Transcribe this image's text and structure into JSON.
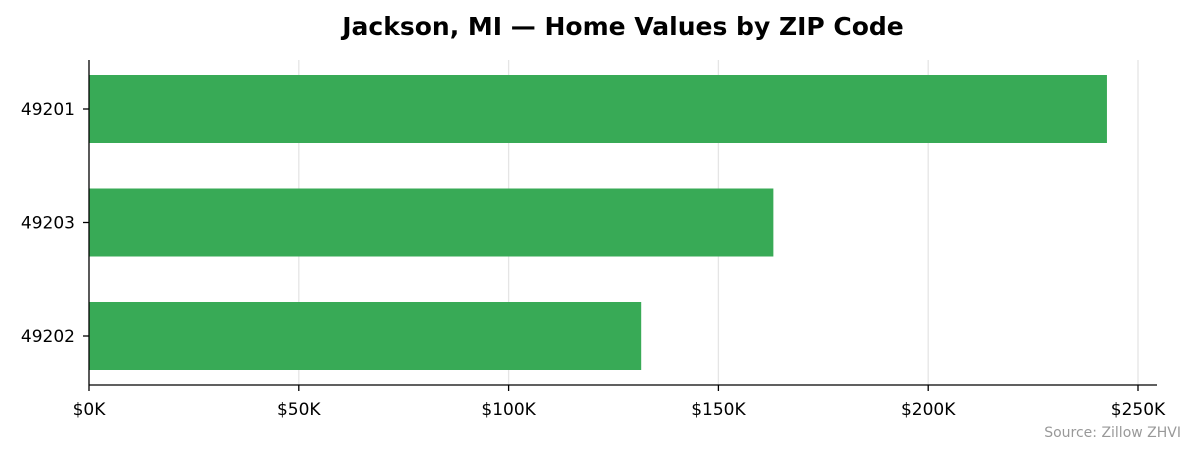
{
  "chart_data": {
    "type": "bar",
    "orientation": "horizontal",
    "title": "Jackson, MI — Home Values by ZIP Code",
    "categories": [
      "49201",
      "49203",
      "49202"
    ],
    "values": [
      242600,
      163100,
      131600
    ],
    "xlabel": "",
    "ylabel": "",
    "xlim": [
      0,
      255000
    ],
    "x_ticks": [
      0,
      50000,
      100000,
      150000,
      200000,
      250000
    ],
    "x_tick_labels": [
      "$0K",
      "$50K",
      "$100K",
      "$150K",
      "$200K",
      "$250K"
    ],
    "grid": "vertical",
    "bar_color": "#34a853",
    "annotation": "Source: Zillow ZHVI"
  }
}
